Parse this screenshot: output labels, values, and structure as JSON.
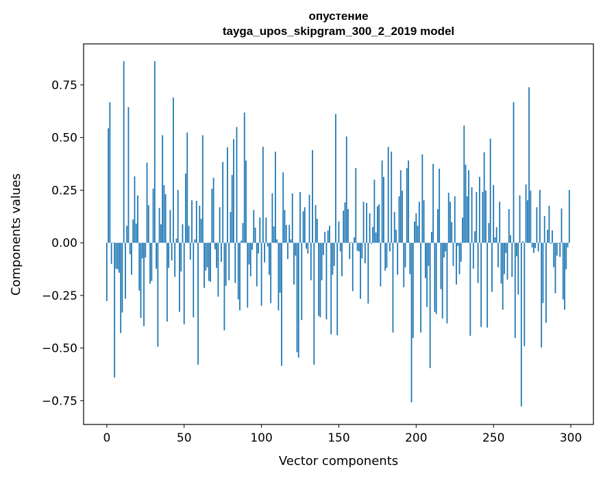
{
  "chart_data": {
    "type": "bar",
    "title": "опустение",
    "subtitle": "tayga_upos_skipgram_300_2_2019 model",
    "xlabel": "Vector components",
    "ylabel": "Components values",
    "xlim": [
      -15,
      314.6
    ],
    "ylim": [
      -0.863,
      0.945
    ],
    "xticks": [
      0,
      50,
      100,
      150,
      200,
      250,
      300
    ],
    "xtick_labels": [
      "0",
      "50",
      "100",
      "150",
      "200",
      "250",
      "300"
    ],
    "yticks": [
      0.75,
      0.5,
      0.25,
      0,
      -0.25,
      -0.5,
      -0.75
    ],
    "ytick_labels": [
      "0.75",
      "0.50",
      "0.25",
      "0.00",
      "−0.25",
      "−0.50",
      "−0.75"
    ],
    "grid": false,
    "color": "#1f77b4",
    "values": [
      -0.277,
      0.544,
      0.668,
      -0.1,
      0.002,
      -0.64,
      -0.123,
      -0.126,
      -0.142,
      -0.429,
      -0.331,
      0.863,
      -0.266,
      0.081,
      0.645,
      -0.054,
      -0.152,
      0.111,
      0.316,
      0.091,
      0.225,
      -0.227,
      -0.357,
      -0.074,
      -0.396,
      -0.07,
      0.381,
      0.179,
      -0.194,
      -0.181,
      0.257,
      0.863,
      -0.123,
      -0.494,
      0.166,
      0.088,
      0.511,
      0.274,
      0.231,
      -0.374,
      -0.119,
      0.156,
      -0.084,
      0.69,
      -0.162,
      0.02,
      0.251,
      -0.328,
      -0.136,
      0.088,
      -0.387,
      0.329,
      0.524,
      0.081,
      -0.08,
      0.202,
      -0.354,
      0.016,
      0.199,
      -0.579,
      0.176,
      0.114,
      0.511,
      -0.214,
      -0.132,
      -0.116,
      -0.181,
      -0.185,
      0.257,
      0.309,
      -0.031,
      -0.119,
      -0.256,
      0.169,
      -0.09,
      0.384,
      -0.416,
      -0.204,
      0.453,
      -0.178,
      0.147,
      0.322,
      0.492,
      -0.191,
      0.55,
      -0.269,
      -0.321,
      0.01,
      0.094,
      0.619,
      0.391,
      -0.308,
      -0.103,
      -0.159,
      -0.033,
      0.156,
      0.072,
      -0.207,
      -0.051,
      0.12,
      -0.299,
      0.456,
      -0.093,
      0.12,
      -0.018,
      -0.152,
      -0.286,
      0.235,
      0.078,
      0.433,
      0.016,
      -0.321,
      -0.237,
      -0.585,
      0.335,
      0.156,
      0.085,
      -0.077,
      0.085,
      0.016,
      0.235,
      -0.198,
      -0.061,
      -0.52,
      -0.546,
      0.241,
      -0.367,
      0.15,
      0.169,
      -0.028,
      -0.051,
      0.228,
      -0.178,
      0.44,
      -0.579,
      0.179,
      0.114,
      -0.347,
      -0.354,
      -0.178,
      -0.058,
      0.052,
      -0.364,
      0.059,
      0.081,
      -0.435,
      -0.152,
      -0.11,
      0.612,
      -0.439,
      0.101,
      -0.041,
      -0.159,
      0.153,
      0.192,
      0.505,
      0.16,
      -0.077,
      0.003,
      -0.23,
      0.026,
      0.355,
      -0.038,
      -0.041,
      -0.266,
      -0.074,
      0.195,
      -0.097,
      0.189,
      -0.289,
      0.14,
      -0.005,
      0.075,
      0.3,
      0.049,
      0.173,
      0.182,
      -0.207,
      0.391,
      0.313,
      -0.132,
      -0.119,
      0.456,
      -0.041,
      0.433,
      -0.426,
      0.147,
      0.062,
      -0.152,
      0.221,
      0.345,
      0.248,
      -0.211,
      -0.116,
      0.355,
      0.391,
      -0.149,
      -0.758,
      -0.452,
      0.101,
      0.14,
      0.081,
      0.195,
      -0.426,
      0.42,
      0.202,
      -0.168,
      -0.305,
      -0.11,
      -0.595,
      0.052,
      0.375,
      -0.328,
      -0.338,
      0.16,
      0.352,
      -0.22,
      -0.36,
      -0.07,
      -0.041,
      -0.383,
      0.238,
      0.195,
      0.098,
      -0.11,
      0.221,
      -0.198,
      -0.015,
      -0.149,
      -0.09,
      0.12,
      0.557,
      0.371,
      0.221,
      0.345,
      -0.442,
      0.264,
      -0.123,
      0.055,
      0.241,
      -0.191,
      0.313,
      -0.4,
      0.241,
      0.43,
      0.248,
      -0.403,
      0.094,
      0.495,
      -0.233,
      0.274,
      0.026,
      0.075,
      -0.116,
      0.195,
      -0.194,
      -0.318,
      -0.149,
      -0.048,
      -0.175,
      0.16,
      0.036,
      -0.162,
      0.668,
      -0.452,
      -0.064,
      -0.246,
      0.225,
      -0.777,
      0.007,
      -0.491,
      0.277,
      0.202,
      0.739,
      0.248,
      -0.022,
      -0.048,
      -0.025,
      0.169,
      -0.041,
      0.251,
      -0.497,
      -0.286,
      0.127,
      -0.38,
      0.062,
      0.176,
      -0.005,
      0.059,
      -0.116,
      -0.24,
      -0.061,
      -0.002,
      -0.067,
      0.163,
      -0.269,
      -0.318,
      -0.126,
      -0.022,
      0.251
    ]
  }
}
